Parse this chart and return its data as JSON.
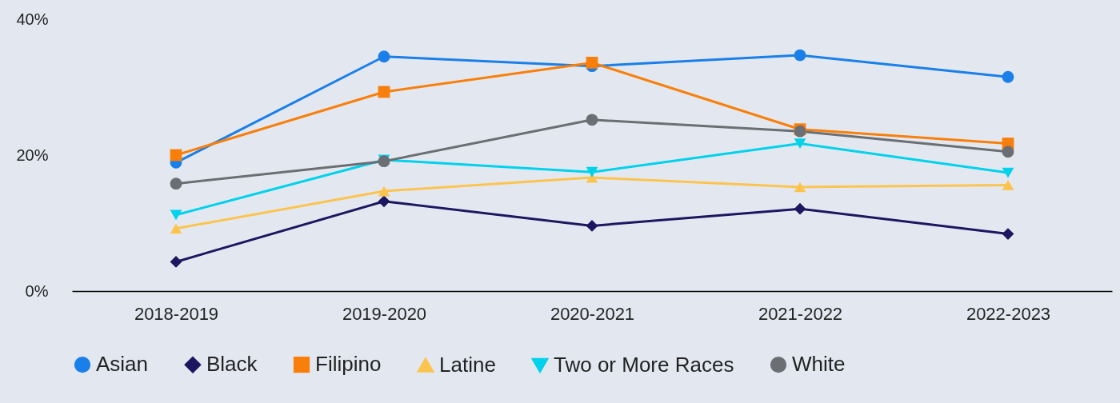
{
  "chart_data": {
    "type": "line",
    "categories": [
      "2018-2019",
      "2019-2020",
      "2020-2021",
      "2021-2022",
      "2022-2023"
    ],
    "ylim": [
      0,
      40
    ],
    "yticks": [
      {
        "value": 0,
        "label": "0%"
      },
      {
        "value": 20,
        "label": "20%"
      },
      {
        "value": 40,
        "label": "40%"
      }
    ],
    "grid": false,
    "legend": "bottom",
    "line_style": "solid",
    "series": [
      {
        "name": "Asian",
        "color": "#1a7fe8",
        "marker": "circle",
        "values": [
          18.9,
          34.5,
          33.1,
          34.7,
          31.5
        ]
      },
      {
        "name": "Black",
        "color": "#1c1760",
        "marker": "diamond",
        "values": [
          4.3,
          13.2,
          9.6,
          12.1,
          8.4
        ]
      },
      {
        "name": "Filipino",
        "color": "#f97f0a",
        "marker": "square",
        "values": [
          20.0,
          29.3,
          33.6,
          23.8,
          21.7
        ]
      },
      {
        "name": "Latine",
        "color": "#fcc44f",
        "marker": "triangle",
        "values": [
          9.2,
          14.7,
          16.7,
          15.3,
          15.6
        ]
      },
      {
        "name": "Two or More Races",
        "color": "#00d2ec",
        "marker": "triangle-down",
        "values": [
          11.2,
          19.3,
          17.5,
          21.7,
          17.4
        ]
      },
      {
        "name": "White",
        "color": "#6b6e73",
        "marker": "circle",
        "values": [
          15.8,
          19.1,
          25.2,
          23.5,
          20.5
        ]
      }
    ]
  }
}
